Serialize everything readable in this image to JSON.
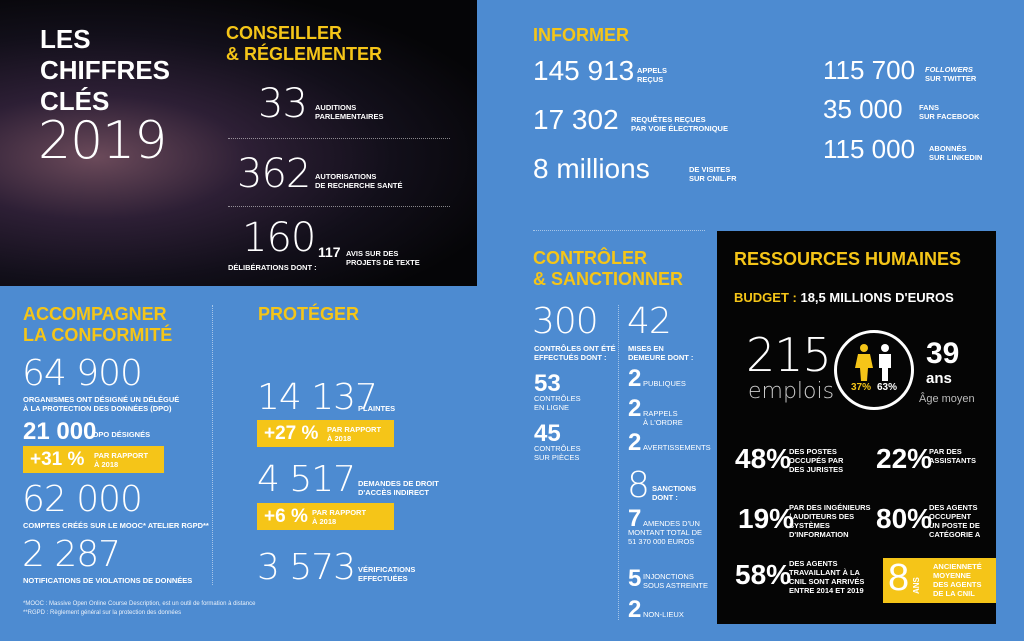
{
  "title": {
    "line1": "LES",
    "line2": "CHIFFRES",
    "line3": "CLÉS",
    "year": "2019"
  },
  "conseiller": {
    "heading1": "CONSEILLER",
    "heading2": "& RÉGLEMENTER",
    "s1_num": "33",
    "s1_l1": "AUDITIONS",
    "s1_l2": "PARLEMENTAIRES",
    "s2_num": "362",
    "s2_l1": "AUTORISATIONS",
    "s2_l2": "DE RECHERCHE SANTÉ",
    "s3_num": "160",
    "s3_label": "DÉLIBÉRATIONS DONT :",
    "s3_num2": "117",
    "s3_l1": "AVIS SUR DES",
    "s3_l2": "PROJETS DE TEXTE"
  },
  "informer": {
    "heading": "INFORMER",
    "a_num": "145 913",
    "a_l1": "APPELS",
    "a_l2": "REÇUS",
    "b_num": "17 302",
    "b_l1": "REQUÊTES REÇUES",
    "b_l2": "PAR VOIE ÉLECTRONIQUE",
    "c_num": "8 millions",
    "c_l1": "DE VISITES",
    "c_l2": "SUR CNIL.FR",
    "d_num": "115 700",
    "d_l1": "FOLLOWERS",
    "d_l2": "SUR TWITTER",
    "e_num": "35 000",
    "e_l1": "FANS",
    "e_l2": "SUR FACEBOOK",
    "f_num": "115 000",
    "f_l1": "ABONNÉS",
    "f_l2": "SUR LINKEDIN"
  },
  "accompagner": {
    "heading1": "ACCOMPAGNER",
    "heading2": "LA CONFORMITÉ",
    "a_num": "64 900",
    "a_l1": "ORGANISMES ONT DÉSIGNÉ UN DÉLÉGUÉ",
    "a_l2": "À LA PROTECTION DES DONNÉES (DPO)",
    "b_num": "21 000",
    "b_label": "DPO DÉSIGNÉS",
    "b_pct": "+31 %",
    "b_p1": "PAR RAPPORT",
    "b_p2": "À 2018",
    "c_num": "62 000",
    "c_label": "COMPTES CRÉÉS SUR LE MOOC* ATELIER RGPD**",
    "d_num": "2 287",
    "d_label": "NOTIFICATIONS DE VIOLATIONS DE DONNÉES"
  },
  "proteger": {
    "heading": "PROTÉGER",
    "a_num": "14 137",
    "a_label": "PLAINTES",
    "a_pct": "+27 %",
    "a_p1": "PAR RAPPORT",
    "a_p2": "À 2018",
    "b_num": "4 517",
    "b_l1": "DEMANDES DE DROIT",
    "b_l2": "D'ACCÈS INDIRECT",
    "b_pct": "+6 %",
    "b_p1": "PAR RAPPORT",
    "b_p2": "À 2018",
    "c_num": "3 573",
    "c_l1": "VÉRIFICATIONS",
    "c_l2": "EFFECTUÉES"
  },
  "controler": {
    "heading1": "CONTRÔLER",
    "heading2": "& SANCTIONNER",
    "a_num": "300",
    "a_l1": "CONTRÔLES ONT ÉTÉ",
    "a_l2": "EFFECTUÉS DONT :",
    "b_num": "53",
    "b_l1": "CONTRÔLES",
    "b_l2": "EN LIGNE",
    "c_num": "45",
    "c_l1": "CONTRÔLES",
    "c_l2": "SUR PIÈCES",
    "m_num": "42",
    "m_l1": "MISES EN",
    "m_l2": "DEMEURE DONT :",
    "m1_num": "2",
    "m1_label": "PUBLIQUES",
    "m2_num": "2",
    "m2_l1": "RAPPELS",
    "m2_l2": "À L'ORDRE",
    "m3_num": "2",
    "m3_label": "AVERTISSEMENTS",
    "s_num": "8",
    "s_l1": "SANCTIONS",
    "s_l2": "DONT :",
    "s1_num": "7",
    "s1_l1": "AMENDES D'UN",
    "s1_l2": "MONTANT TOTAL DE",
    "s1_l3": "51 370 000 EUROS",
    "s2_num": "5",
    "s2_l1": "INJONCTIONS",
    "s2_l2": "SOUS ASTREINTE",
    "s3_num": "2",
    "s3_label": "NON-LIEUX"
  },
  "rh": {
    "heading": "RESSOURCES HUMAINES",
    "budget_label": "BUDGET :",
    "budget_value": "18,5 MILLIONS D'EUROS",
    "emplois_num": "215",
    "emplois_label": "emplois",
    "female_pct": "37%",
    "male_pct": "63%",
    "age_num": "39",
    "age_unit": "ans",
    "age_label": "Âge moyen",
    "p1": "48%",
    "p1_l1": "DES POSTES",
    "p1_l2": "OCCUPÉS PAR",
    "p1_l3": "DES JURISTES",
    "p2": "22%",
    "p2_l1": "PAR DES",
    "p2_l2": "ASSISTANTS",
    "p3": "19%",
    "p3_l1": "PAR DES INGÉNIEURS",
    "p3_l2": "/ AUDITEURS DES",
    "p3_l3": "SYSTÈMES",
    "p3_l4": "D'INFORMATION",
    "p4": "80%",
    "p4_l1": "DES AGENTS",
    "p4_l2": "OCCUPENT",
    "p4_l3": "UN POSTE DE",
    "p4_l4": "CATÉGORIE A",
    "p5": "58%",
    "p5_l1": "DES AGENTS",
    "p5_l2": "TRAVAILLANT À LA",
    "p5_l3": "CNIL SONT ARRIVÉS",
    "p5_l4": "ENTRE 2014 ET 2019",
    "anc_num": "8",
    "anc_unit": "ANS",
    "anc_l1": "ANCIENNETÉ",
    "anc_l2": "MOYENNE",
    "anc_l3": "DES AGENTS",
    "anc_l4": "DE LA CNIL"
  },
  "footnotes": {
    "f1": "*MOOC : Massive Open Online Course Description, est un outil de formation à distance",
    "f2": "**RGPD : Règlement général sur la protection des données"
  },
  "colors": {
    "background": "#4d8bd1",
    "accent": "#f5c518",
    "dark": "#050505"
  }
}
